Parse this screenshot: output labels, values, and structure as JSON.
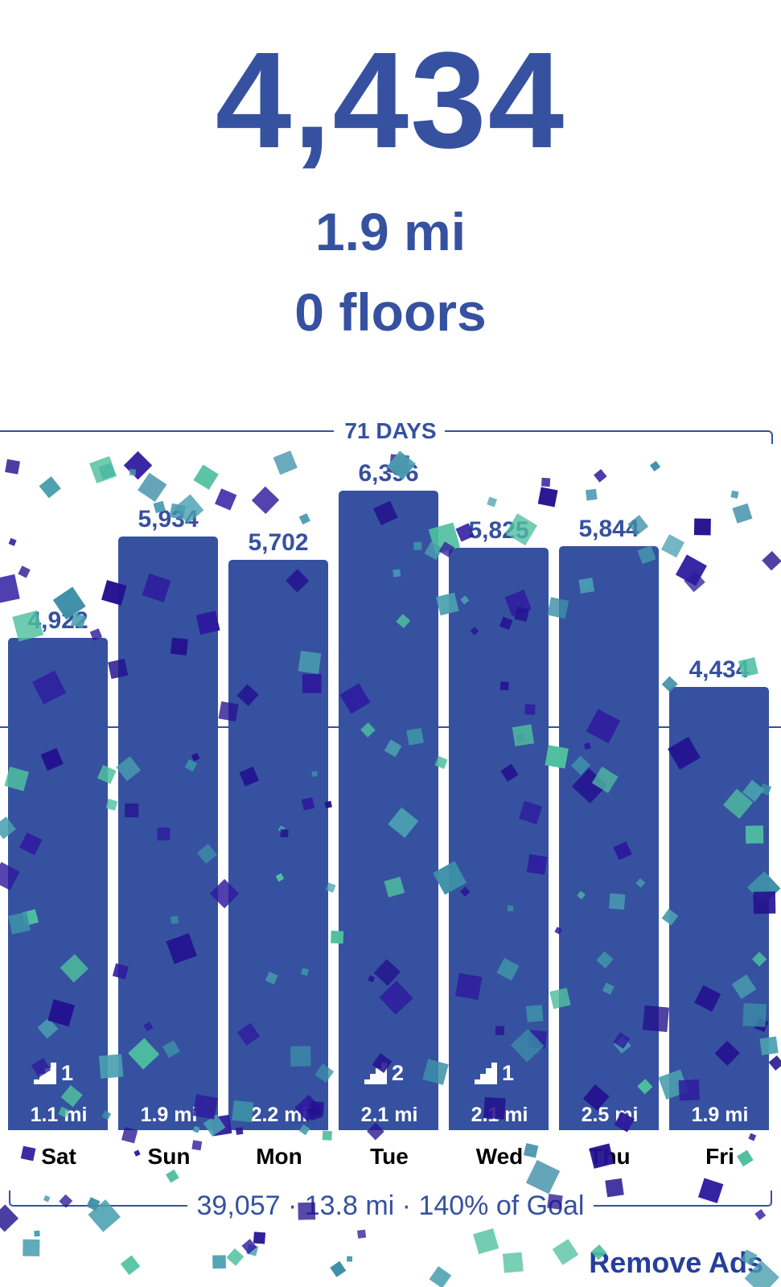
{
  "hero": {
    "steps": "4,434",
    "distance": "1.9 mi",
    "floors": "0 floors"
  },
  "range_label": "71 DAYS",
  "summary": "39,057 · 13.8 mi · 140% of Goal",
  "remove_ads": "Remove Ads",
  "colors": {
    "bar": "#3651a0",
    "text": "#3651a0",
    "confetti": [
      "#4fbf9f",
      "#3d8fa8",
      "#2e1a9e",
      "#24128f",
      "#4a9fb0"
    ]
  },
  "chart_data": {
    "type": "bar",
    "categories": [
      "Sat",
      "Sun",
      "Mon",
      "Tue",
      "Wed",
      "Thu",
      "Fri"
    ],
    "values": [
      4922,
      5934,
      5702,
      6396,
      5825,
      5844,
      4434
    ],
    "value_labels": [
      "4,922",
      "5,934",
      "5,702",
      "6,396",
      "5,825",
      "5,844",
      "4,434"
    ],
    "distance_labels": [
      "1.1 mi",
      "1.9 mi",
      "2.2 mi",
      "2.1 mi",
      "2.1 mi",
      "2.5 mi",
      "1.9 mi"
    ],
    "floors": [
      1,
      null,
      null,
      2,
      1,
      null,
      null
    ],
    "average_line": true,
    "grid": false
  }
}
